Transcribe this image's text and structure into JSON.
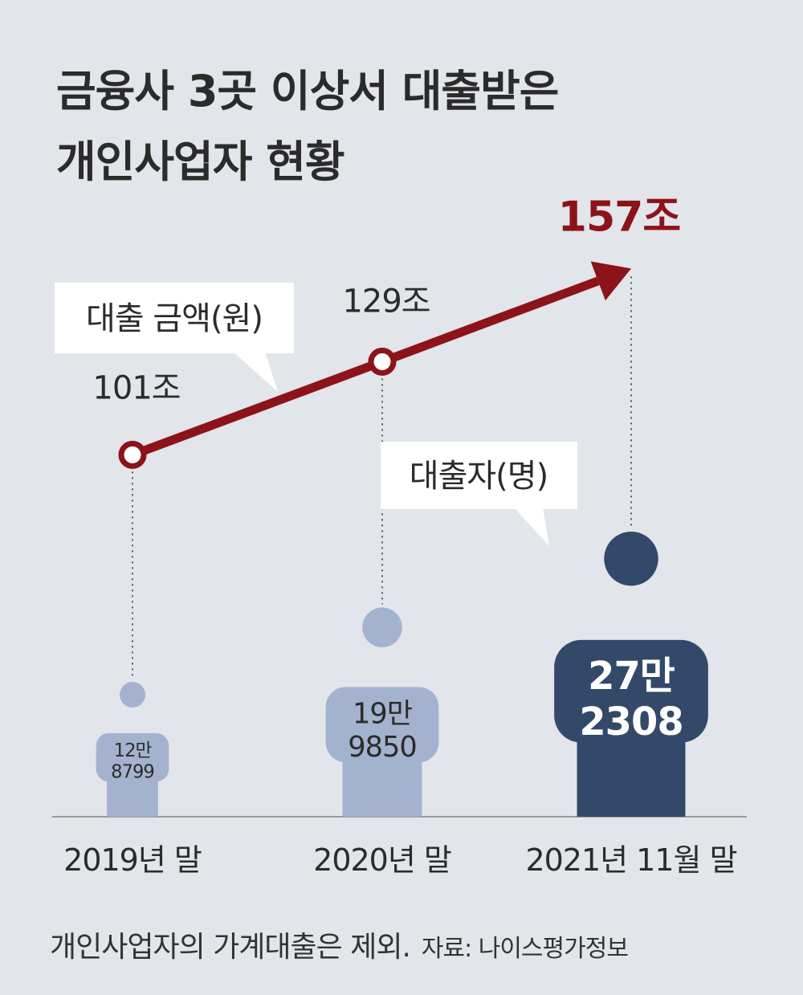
{
  "title_lines": [
    "금융사 3곳 이상서 대출받은",
    "개인사업자 현황"
  ],
  "colors": {
    "background": "#e2e5ea",
    "amount_line": "#8c1319",
    "borrower_light": "#a3b3cf",
    "borrower_dark": "#33496a",
    "label_text": "#2b2b2b",
    "highlight_text": "#8c1319"
  },
  "chart_data": {
    "type": "line",
    "categories": [
      "2019년 말",
      "2020년 말",
      "2021년 11월 말"
    ],
    "series": [
      {
        "name": "대출 금액(원)",
        "values": [
          101,
          129,
          157
        ],
        "value_labels": [
          "101조",
          "129조",
          "157조"
        ],
        "unit": "조"
      },
      {
        "name": "대출자(명)",
        "values": [
          128799,
          199850,
          272308
        ],
        "value_labels": [
          [
            "12만",
            "8799"
          ],
          [
            "19만",
            "9850"
          ],
          [
            "27만",
            "2308"
          ]
        ],
        "mark": "person-icon"
      }
    ],
    "legend": [
      "대출 금액(원)",
      "대출자(명)"
    ],
    "grid": false,
    "highlight": "157조"
  },
  "footnote": {
    "note": "개인사업자의 가계대출은 제외.",
    "source": "자료: 나이스평가정보"
  }
}
